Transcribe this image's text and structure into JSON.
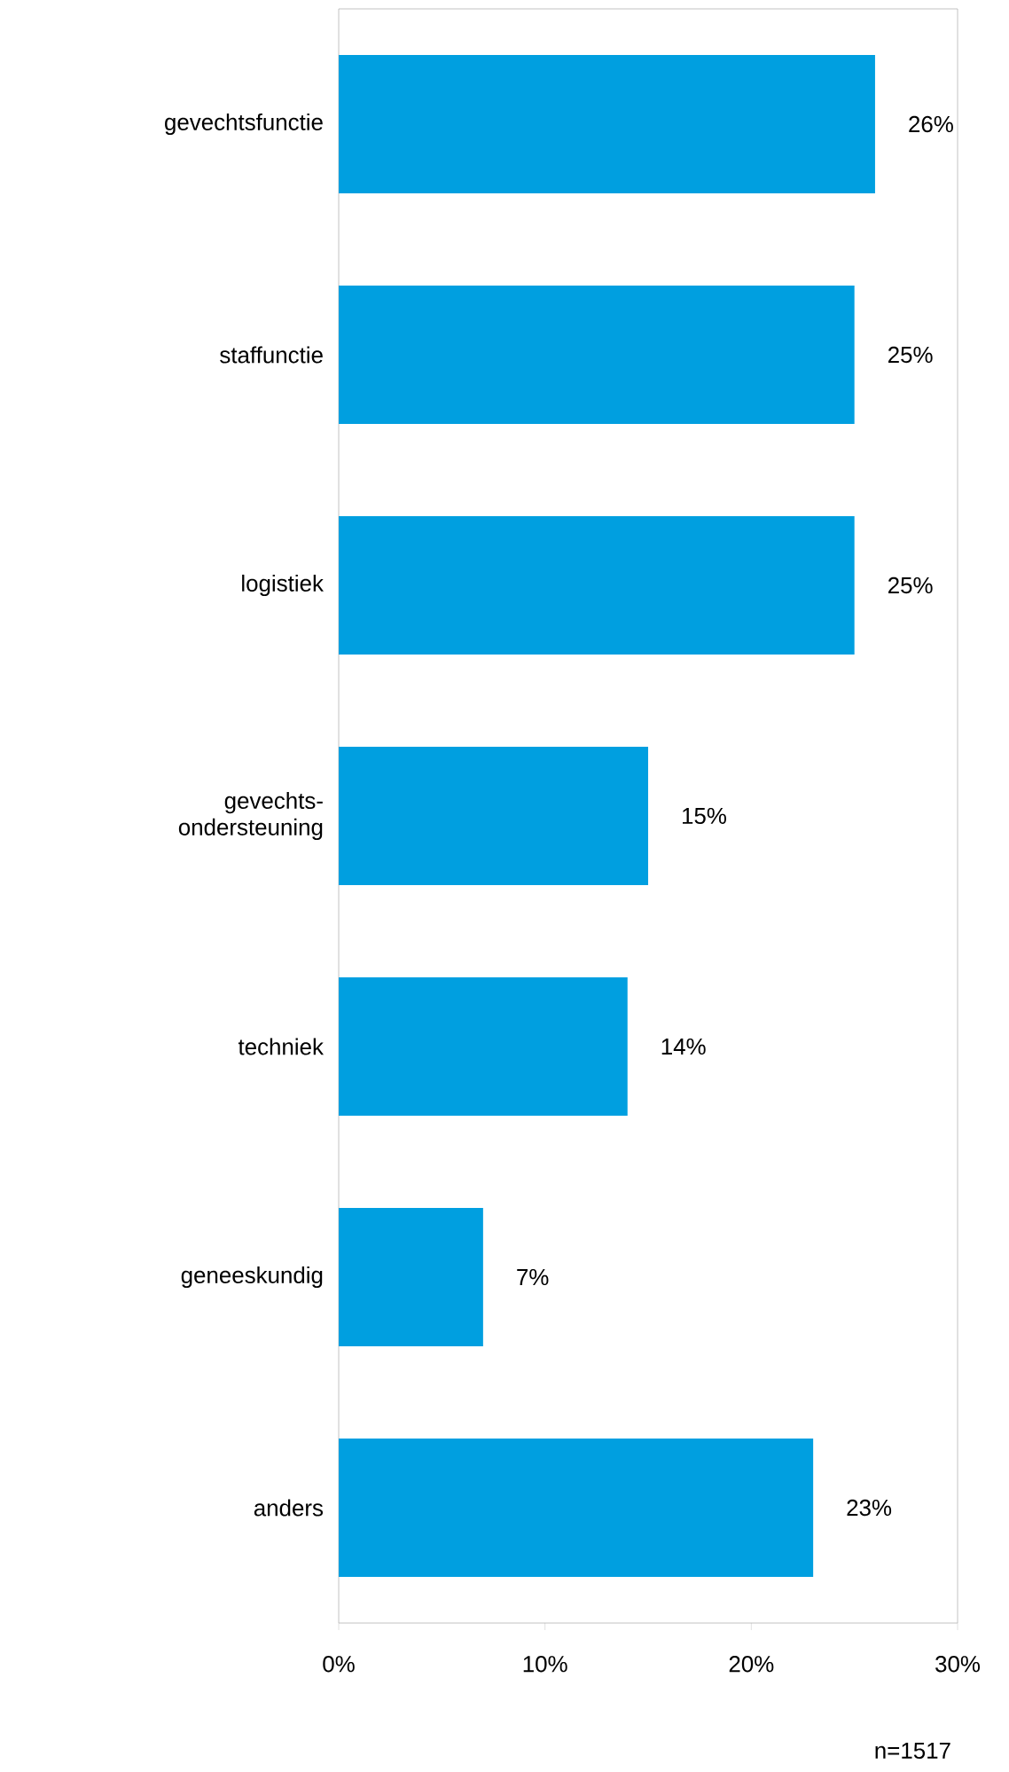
{
  "chart_data": {
    "type": "bar",
    "orientation": "horizontal",
    "categories": [
      "gevechtsfunctie",
      "staffunctie",
      "logistiek",
      "gevechts-ondersteuning",
      "techniek",
      "geneeskundig",
      "anders"
    ],
    "values": [
      26,
      25,
      25,
      15,
      14,
      7,
      23
    ],
    "value_labels": [
      "26%",
      "25%",
      "25%",
      "15%",
      "14%",
      "7%",
      "23%"
    ],
    "color": "#009fe0",
    "xlim": [
      0,
      30
    ],
    "xticks": [
      {
        "value": 0,
        "label": "0%"
      },
      {
        "value": 10,
        "label": "10%"
      },
      {
        "value": 20,
        "label": "20%"
      },
      {
        "value": 30,
        "label": "30%"
      }
    ],
    "annotations": [
      "n=1517"
    ]
  }
}
